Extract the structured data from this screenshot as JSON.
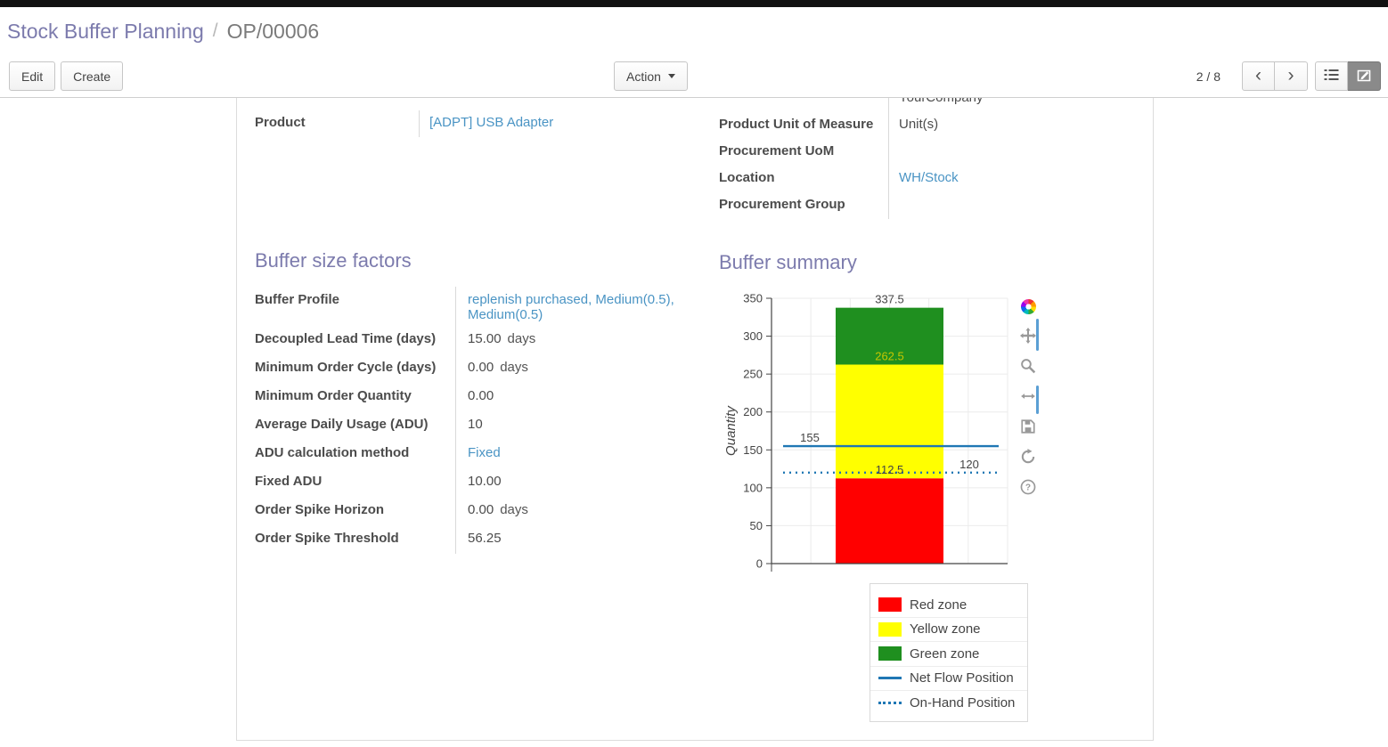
{
  "breadcrumb": {
    "parent": "Stock Buffer Planning",
    "separator": "/",
    "current": "OP/00006"
  },
  "toolbar": {
    "edit": "Edit",
    "create": "Create",
    "action": "Action",
    "pager": "2 / 8"
  },
  "sheet": {
    "company_partial": "YourCompany",
    "left_fields": [
      {
        "label": "Product",
        "value": "[ADPT] USB Adapter"
      }
    ],
    "right_fields": [
      {
        "label": "Product Unit of Measure",
        "value": "Unit(s)"
      },
      {
        "label": "Procurement UoM",
        "value": ""
      },
      {
        "label": "Location",
        "value": "WH/Stock"
      },
      {
        "label": "Procurement Group",
        "value": ""
      }
    ],
    "factors": {
      "title": "Buffer size factors",
      "rows": [
        {
          "label": "Buffer Profile",
          "value": "replenish purchased, Medium(0.5), Medium(0.5)"
        },
        {
          "label": "Decoupled Lead Time (days)",
          "value": "15.00",
          "suffix": "days"
        },
        {
          "label": "Minimum Order Cycle (days)",
          "value": "0.00",
          "suffix": "days"
        },
        {
          "label": "Minimum Order Quantity",
          "value": "0.00"
        },
        {
          "label": "Average Daily Usage (ADU)",
          "value": "10"
        },
        {
          "label": "ADU calculation method",
          "value": "Fixed"
        },
        {
          "label": "Fixed ADU",
          "value": "10.00"
        },
        {
          "label": "Order Spike Horizon",
          "value": "0.00",
          "suffix": "days"
        },
        {
          "label": "Order Spike Threshold",
          "value": "56.25"
        }
      ]
    },
    "summary_title": "Buffer summary"
  },
  "chart_data": {
    "type": "bar",
    "title": "Buffer summary",
    "xlabel": "",
    "ylabel": "Quantity",
    "ylim": [
      0,
      350
    ],
    "yticks": [
      0,
      50,
      100,
      150,
      200,
      250,
      300,
      350
    ],
    "grid": true,
    "legend_position": "bottom-right",
    "zones": [
      {
        "name": "Red zone",
        "color": "#ff0000",
        "from": 0,
        "to": 112.5
      },
      {
        "name": "Yellow zone",
        "color": "#ffff00",
        "from": 112.5,
        "to": 262.5
      },
      {
        "name": "Green zone",
        "color": "#1f8f1f",
        "from": 262.5,
        "to": 337.5
      }
    ],
    "lines": [
      {
        "name": "Net Flow Position",
        "value": 155,
        "style": "solid",
        "color": "#1f77b4"
      },
      {
        "name": "On-Hand Position",
        "value": 120,
        "style": "dotted",
        "color": "#1f77b4"
      }
    ],
    "annotations": [
      {
        "text": "337.5",
        "x": "center",
        "value": 337.5,
        "color": "#444444"
      },
      {
        "text": "262.5",
        "x": "center",
        "value": 262.5,
        "color": "#c6c600"
      },
      {
        "text": "155",
        "x": "left",
        "value": 155,
        "color": "#444444"
      },
      {
        "text": "112.5",
        "x": "center",
        "value": 112.5,
        "color": "#444444"
      },
      {
        "text": "120",
        "x": "right",
        "value": 120,
        "color": "#444444"
      }
    ],
    "legend": [
      {
        "label": "Red zone",
        "swatch": "box",
        "color": "#ff0000"
      },
      {
        "label": "Yellow zone",
        "swatch": "box",
        "color": "#ffff00"
      },
      {
        "label": "Green zone",
        "swatch": "box",
        "color": "#1f8f1f"
      },
      {
        "label": "Net Flow Position",
        "swatch": "line",
        "color": "#1f77b4"
      },
      {
        "label": "On-Hand Position",
        "swatch": "dotted",
        "color": "#1f77b4"
      }
    ]
  },
  "colors": {
    "accent": "#7c7bad",
    "link": "#4a94c4",
    "flow_line": "#1f77b4"
  }
}
